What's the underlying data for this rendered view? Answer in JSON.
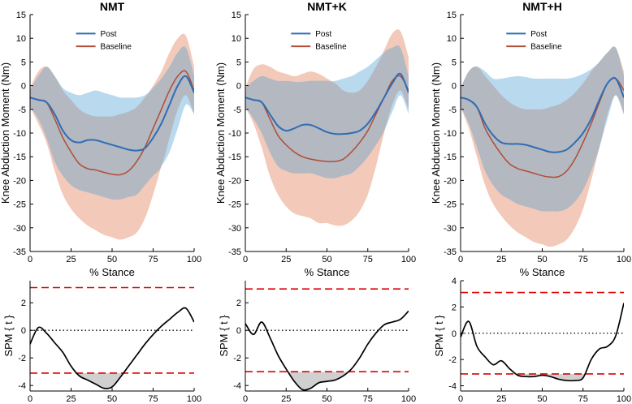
{
  "figure": {
    "colors": {
      "post": "#2f6db5",
      "baseline": "#b24c35",
      "post_band": "#b9d9ee",
      "baseline_band": "#f3c9b9",
      "overlap_band": "#b3b8c1",
      "threshold": "#e00000",
      "spm_fill": "#d0d0d0"
    }
  },
  "chart_data": [
    {
      "type": "line",
      "title": "NMT",
      "xlabel": "% Stance",
      "ylabel": "Knee Abduction Moment (Nm)",
      "xlim": [
        0,
        100
      ],
      "ylim": [
        -35,
        15
      ],
      "xticks": [
        "0",
        "25",
        "50",
        "75",
        "100"
      ],
      "yticks": [
        "-35",
        "-30",
        "-25",
        "-20",
        "-15",
        "-10",
        "-5",
        "0",
        "5",
        "10",
        "15"
      ],
      "legend": [
        "Post",
        "Baseline"
      ],
      "x": [
        0,
        5,
        10,
        15,
        20,
        25,
        30,
        35,
        40,
        45,
        50,
        55,
        60,
        65,
        70,
        75,
        80,
        85,
        90,
        95,
        100
      ],
      "series": [
        {
          "name": "Post",
          "mean": [
            -2.5,
            -3,
            -3.5,
            -6,
            -9.5,
            -11.5,
            -12,
            -11.5,
            -11.5,
            -12,
            -12.5,
            -13,
            -13.5,
            -13.7,
            -13.2,
            -11,
            -8,
            -4,
            0,
            2,
            -1.5
          ],
          "lower": [
            -4.5,
            -7,
            -11,
            -16,
            -19,
            -21,
            -22,
            -22.5,
            -23,
            -23.5,
            -24,
            -24,
            -23.5,
            -23,
            -21,
            -19,
            -17,
            -14,
            -9,
            -4,
            -6
          ],
          "upper": [
            -1,
            2,
            4,
            2,
            -0.5,
            -1.5,
            -2,
            -1.5,
            -1,
            -1.5,
            -2,
            -2.5,
            -2.5,
            -2.5,
            -2,
            -0.5,
            1.5,
            4,
            7,
            8,
            2
          ]
        },
        {
          "name": "Baseline",
          "mean": [
            -2.5,
            -3,
            -3.5,
            -7,
            -11,
            -14,
            -16.5,
            -17.5,
            -17.8,
            -18.3,
            -18.7,
            -18.8,
            -18,
            -16,
            -13,
            -9,
            -5,
            -1,
            2,
            3,
            -1
          ],
          "lower": [
            -4.5,
            -8,
            -12,
            -18,
            -23,
            -26,
            -28,
            -29.5,
            -30.5,
            -31.5,
            -32,
            -32.5,
            -32,
            -31,
            -28,
            -23,
            -17,
            -11,
            -5,
            -2,
            -6
          ],
          "upper": [
            -0.5,
            3,
            4,
            2,
            -1,
            -3,
            -5,
            -6,
            -6.5,
            -6.5,
            -6.5,
            -6,
            -5.5,
            -4.5,
            -2.5,
            0,
            3,
            7,
            10,
            10.5,
            4
          ]
        }
      ]
    },
    {
      "type": "line",
      "title": "NMT+K",
      "xlabel": "% Stance",
      "ylabel": "Knee Abduction Moment (Nm)",
      "xlim": [
        0,
        100
      ],
      "ylim": [
        -35,
        15
      ],
      "xticks": [
        "0",
        "25",
        "50",
        "75",
        "100"
      ],
      "yticks": [
        "-35",
        "-30",
        "-25",
        "-20",
        "-15",
        "-10",
        "-5",
        "0",
        "5",
        "10",
        "15"
      ],
      "legend": [
        "Post",
        "Baseline"
      ],
      "x": [
        0,
        5,
        10,
        15,
        20,
        25,
        30,
        35,
        40,
        45,
        50,
        55,
        60,
        65,
        70,
        75,
        80,
        85,
        90,
        95,
        100
      ],
      "series": [
        {
          "name": "Post",
          "mean": [
            -2.5,
            -3,
            -3.5,
            -6,
            -8.5,
            -9.5,
            -9,
            -8.3,
            -8.3,
            -9,
            -9.8,
            -10.2,
            -10.2,
            -10,
            -9.5,
            -8,
            -5.5,
            -2.5,
            0.5,
            2.5,
            -1.5
          ],
          "lower": [
            -4.5,
            -7,
            -10,
            -14,
            -17,
            -18,
            -18.5,
            -18.5,
            -18.5,
            -19,
            -19.5,
            -19.5,
            -19,
            -18.5,
            -17,
            -15,
            -12.5,
            -9.5,
            -5.5,
            -2,
            -6
          ],
          "upper": [
            -0.5,
            1,
            2,
            1.5,
            1,
            1,
            0.8,
            0.8,
            1,
            1,
            1,
            1,
            1.5,
            2,
            3,
            4,
            5.5,
            7,
            8,
            8,
            2
          ]
        },
        {
          "name": "Baseline",
          "mean": [
            -2.5,
            -3,
            -3.5,
            -7,
            -10.5,
            -12.5,
            -14,
            -15,
            -15.5,
            -15.8,
            -16,
            -16,
            -15.5,
            -14,
            -12,
            -9.5,
            -6,
            -2.5,
            1,
            2,
            -1
          ],
          "lower": [
            -4.5,
            -8,
            -13,
            -19,
            -23,
            -25.5,
            -27,
            -27.5,
            -28,
            -29,
            -29,
            -29.5,
            -29.5,
            -28.5,
            -26.5,
            -23,
            -17,
            -10,
            -4,
            -1,
            -5
          ],
          "upper": [
            -0.5,
            3.5,
            4.5,
            4,
            3,
            2.5,
            2,
            2.5,
            3,
            2.5,
            1.5,
            0.5,
            -1,
            -1.5,
            -1,
            1,
            4,
            7.5,
            11,
            11.5,
            6
          ]
        }
      ]
    },
    {
      "type": "line",
      "title": "NMT+H",
      "xlabel": "% Stance",
      "ylabel": "Knee Abduction Moment (Nm)",
      "xlim": [
        0,
        100
      ],
      "ylim": [
        -35,
        15
      ],
      "xticks": [
        "0",
        "25",
        "50",
        "75",
        "100"
      ],
      "yticks": [
        "-35",
        "-30",
        "-25",
        "-20",
        "-15",
        "-10",
        "-5",
        "0",
        "5",
        "10",
        "15"
      ],
      "legend": [
        "Post",
        "Baseline"
      ],
      "x": [
        0,
        5,
        10,
        15,
        20,
        25,
        30,
        35,
        40,
        45,
        50,
        55,
        60,
        65,
        70,
        75,
        80,
        85,
        90,
        95,
        100
      ],
      "series": [
        {
          "name": "Post",
          "mean": [
            -2.5,
            -3,
            -4.5,
            -8,
            -10.5,
            -12,
            -12.3,
            -12.3,
            -12.5,
            -13,
            -13.5,
            -14,
            -14,
            -13.5,
            -12,
            -10,
            -7,
            -3,
            0.5,
            1.5,
            -2.5
          ],
          "lower": [
            -4.5,
            -8,
            -13,
            -18,
            -21,
            -23,
            -24,
            -25,
            -25.5,
            -26,
            -26.5,
            -26.5,
            -26.5,
            -26,
            -24.5,
            -22,
            -18,
            -13,
            -7,
            -2,
            -6
          ],
          "upper": [
            -0.5,
            3,
            4,
            3,
            1.5,
            1.5,
            1.8,
            2,
            1.8,
            1.5,
            1.5,
            1.5,
            1.5,
            1.5,
            1.8,
            2.5,
            3.5,
            5,
            7,
            8,
            2
          ]
        },
        {
          "name": "Baseline",
          "mean": [
            -2.5,
            -3,
            -4.5,
            -9,
            -12,
            -14.5,
            -16.5,
            -17.5,
            -18,
            -18.5,
            -19,
            -19.3,
            -19.2,
            -18,
            -15.5,
            -12,
            -8,
            -3.5,
            0.5,
            1.5,
            -1
          ],
          "lower": [
            -4.5,
            -9,
            -15,
            -21,
            -25,
            -27.5,
            -29.5,
            -31,
            -32,
            -33,
            -33.5,
            -34,
            -33.5,
            -32.5,
            -30,
            -26,
            -20,
            -13,
            -6,
            -2,
            -6
          ],
          "upper": [
            -0.5,
            3,
            4,
            2,
            0,
            -2,
            -3.5,
            -4.5,
            -5,
            -5,
            -5,
            -4.5,
            -4,
            -3,
            -1.5,
            0.5,
            3,
            5,
            7,
            8,
            3
          ]
        }
      ]
    },
    {
      "type": "line",
      "title": "",
      "xlabel": "",
      "ylabel": "SPM { t }",
      "xlim": [
        0,
        100
      ],
      "ylim": [
        -4.4,
        3.6
      ],
      "xticks": [
        "0",
        "25",
        "50",
        "75",
        "100"
      ],
      "yticks": [
        "-4",
        "-2",
        "0",
        "2"
      ],
      "threshold": 3.1,
      "x": [
        0,
        5,
        10,
        15,
        20,
        25,
        30,
        35,
        40,
        45,
        50,
        55,
        60,
        65,
        70,
        75,
        80,
        85,
        90,
        95,
        100
      ],
      "series": [
        {
          "name": "SPM{t}",
          "values": [
            -1,
            0.2,
            -0.2,
            -0.9,
            -1.6,
            -2.6,
            -3.3,
            -3.6,
            -3.9,
            -4.2,
            -4.1,
            -3.4,
            -2.6,
            -1.8,
            -1,
            -0.3,
            0.3,
            0.8,
            1.3,
            1.6,
            0.6
          ]
        }
      ]
    },
    {
      "type": "line",
      "title": "",
      "xlabel": "",
      "ylabel": "SPM { t }",
      "xlim": [
        0,
        100
      ],
      "ylim": [
        -4.4,
        3.6
      ],
      "xticks": [
        "0",
        "25",
        "50",
        "75",
        "100"
      ],
      "yticks": [
        "-4",
        "-2",
        "0",
        "2"
      ],
      "threshold": 3.0,
      "x": [
        0,
        5,
        10,
        15,
        20,
        25,
        30,
        35,
        40,
        45,
        50,
        55,
        60,
        65,
        70,
        75,
        80,
        85,
        90,
        95,
        100
      ],
      "series": [
        {
          "name": "SPM{t}",
          "values": [
            0.5,
            -0.3,
            0.6,
            -0.5,
            -1.8,
            -2.8,
            -3.7,
            -4.3,
            -4.2,
            -3.8,
            -3.7,
            -3.6,
            -3.3,
            -2.8,
            -2,
            -1,
            -0.2,
            0.4,
            0.6,
            0.8,
            1.4
          ]
        }
      ]
    },
    {
      "type": "line",
      "title": "",
      "xlabel": "",
      "ylabel": "SPM { t }",
      "xlim": [
        0,
        100
      ],
      "ylim": [
        -4.4,
        4
      ],
      "xticks": [
        "0",
        "25",
        "50",
        "75",
        "100"
      ],
      "yticks": [
        "-4",
        "-2",
        "0",
        "2",
        "4"
      ],
      "threshold": 3.1,
      "x": [
        0,
        5,
        10,
        15,
        20,
        25,
        30,
        35,
        40,
        45,
        50,
        55,
        60,
        65,
        70,
        75,
        80,
        85,
        90,
        95,
        100
      ],
      "series": [
        {
          "name": "SPM{t}",
          "values": [
            -0.3,
            0.9,
            -1,
            -1.8,
            -2.4,
            -2.1,
            -2.7,
            -3.2,
            -3.3,
            -3.3,
            -3.2,
            -3.3,
            -3.5,
            -3.6,
            -3.6,
            -3.4,
            -2,
            -1.2,
            -1,
            -0.2,
            2.3
          ]
        }
      ]
    }
  ]
}
